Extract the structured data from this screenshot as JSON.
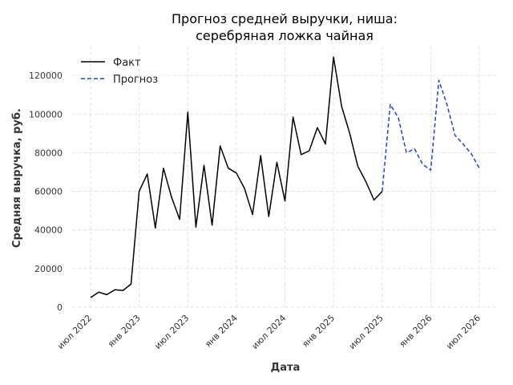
{
  "chart_data": {
    "type": "line",
    "title_lines": [
      "Прогноз средней выручки, ниша:",
      "серебряная ложка чайная"
    ],
    "xlabel": "Дата",
    "ylabel": "Средняя выручка, руб.",
    "ylim": [
      0,
      135000
    ],
    "yticks": [
      0,
      20000,
      40000,
      60000,
      80000,
      100000,
      120000
    ],
    "xticks": [
      {
        "date": "2022-07",
        "label": "июл 2022"
      },
      {
        "date": "2023-01",
        "label": "янв 2023"
      },
      {
        "date": "2023-07",
        "label": "июл 2023"
      },
      {
        "date": "2024-01",
        "label": "янв 2024"
      },
      {
        "date": "2024-07",
        "label": "июл 2024"
      },
      {
        "date": "2025-01",
        "label": "янв 2025"
      },
      {
        "date": "2025-07",
        "label": "июл 2025"
      },
      {
        "date": "2026-01",
        "label": "янв 2026"
      },
      {
        "date": "2026-07",
        "label": "июл 2026"
      }
    ],
    "grid": true,
    "legend_position": "top-left",
    "series": [
      {
        "name": "Факт",
        "color": "#000000",
        "style": "solid",
        "points": [
          [
            "2022-07",
            5000
          ],
          [
            "2022-08",
            7800
          ],
          [
            "2022-09",
            6500
          ],
          [
            "2022-10",
            9000
          ],
          [
            "2022-11",
            8700
          ],
          [
            "2022-12",
            12000
          ],
          [
            "2023-01",
            60000
          ],
          [
            "2023-02",
            69000
          ],
          [
            "2023-03",
            41000
          ],
          [
            "2023-04",
            72000
          ],
          [
            "2023-05",
            57000
          ],
          [
            "2023-06",
            45500
          ],
          [
            "2023-07",
            101000
          ],
          [
            "2023-08",
            41500
          ],
          [
            "2023-09",
            73500
          ],
          [
            "2023-10",
            42500
          ],
          [
            "2023-11",
            83500
          ],
          [
            "2023-12",
            72000
          ],
          [
            "2024-01",
            69500
          ],
          [
            "2024-02",
            61500
          ],
          [
            "2024-03",
            48000
          ],
          [
            "2024-04",
            78500
          ],
          [
            "2024-05",
            47000
          ],
          [
            "2024-06",
            75000
          ],
          [
            "2024-07",
            55000
          ],
          [
            "2024-08",
            98500
          ],
          [
            "2024-09",
            79000
          ],
          [
            "2024-10",
            81000
          ],
          [
            "2024-11",
            93000
          ],
          [
            "2024-12",
            84500
          ],
          [
            "2025-01",
            129500
          ],
          [
            "2025-02",
            104000
          ],
          [
            "2025-03",
            90000
          ],
          [
            "2025-04",
            73000
          ],
          [
            "2025-05",
            65000
          ],
          [
            "2025-06",
            55500
          ],
          [
            "2025-07",
            60000
          ]
        ]
      },
      {
        "name": "Прогноз",
        "color": "#1f45c8",
        "style": "dashed",
        "points": [
          [
            "2025-07",
            60000
          ],
          [
            "2025-08",
            105000
          ],
          [
            "2025-09",
            98000
          ],
          [
            "2025-10",
            80000
          ],
          [
            "2025-11",
            82000
          ],
          [
            "2025-12",
            74000
          ],
          [
            "2026-01",
            71000
          ],
          [
            "2026-02",
            117500
          ],
          [
            "2026-03",
            105000
          ],
          [
            "2026-04",
            89000
          ],
          [
            "2026-05",
            84500
          ],
          [
            "2026-06",
            79500
          ],
          [
            "2026-07",
            72000
          ]
        ]
      }
    ]
  }
}
